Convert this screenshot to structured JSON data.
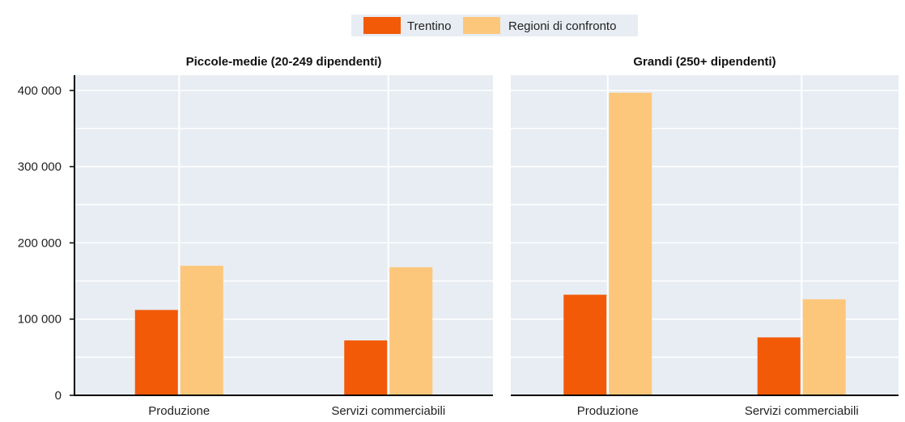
{
  "chart_data": {
    "type": "bar",
    "colors": {
      "background": "#e8edf3",
      "grid": "#ffffff",
      "axis": "#000000"
    },
    "legend": {
      "placement": "top-center",
      "entries": [
        {
          "name": "Trentino",
          "color": "#f25a07"
        },
        {
          "name": "Regioni di confronto",
          "color": "#fcc77b"
        }
      ]
    },
    "ylim": [
      0,
      420000
    ],
    "yticks": [
      {
        "value": 0,
        "label": "0"
      },
      {
        "value": 100000,
        "label": "100 000"
      },
      {
        "value": 200000,
        "label": "200 000"
      },
      {
        "value": 300000,
        "label": "300 000"
      },
      {
        "value": 400000,
        "label": "400 000"
      }
    ],
    "panels": [
      {
        "title": "Piccole-medie (20-249 dipendenti)",
        "categories": [
          "Produzione",
          "Servizi commerciabili"
        ],
        "series": [
          {
            "name": "Trentino",
            "values": [
              112000,
              72000
            ]
          },
          {
            "name": "Regioni di confronto",
            "values": [
              170000,
              168000
            ]
          }
        ]
      },
      {
        "title": "Grandi (250+ dipendenti)",
        "categories": [
          "Produzione",
          "Servizi commerciabili"
        ],
        "series": [
          {
            "name": "Trentino",
            "values": [
              132000,
              76000
            ]
          },
          {
            "name": "Regioni di confronto",
            "values": [
              397000,
              126000
            ]
          }
        ]
      }
    ]
  }
}
